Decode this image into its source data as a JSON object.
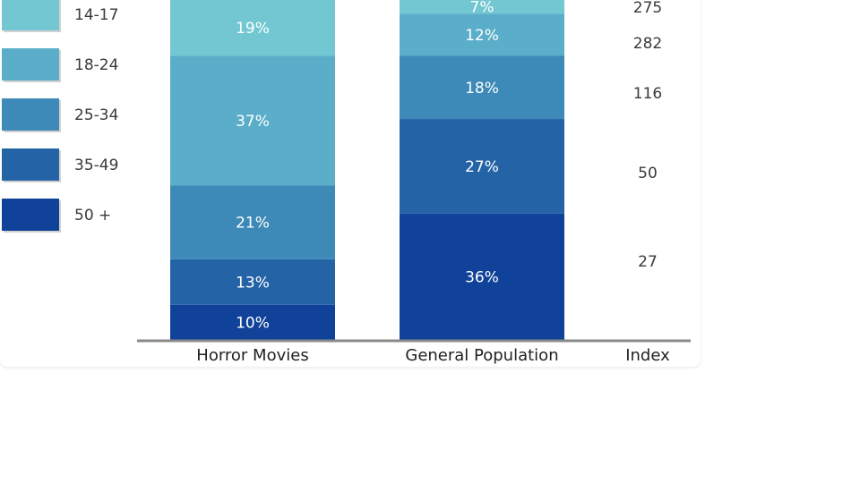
{
  "chart_data": {
    "type": "bar",
    "stacked": true,
    "normalized": true,
    "categories": [
      "Horror Movies",
      "General Population"
    ],
    "series": [
      {
        "name": "14-17",
        "color": "#72c7d2",
        "values": [
          19,
          7
        ],
        "labels": [
          "19%",
          "7%"
        ]
      },
      {
        "name": "18-24",
        "color": "#5aaec9",
        "values": [
          37,
          12
        ],
        "labels": [
          "37%",
          "12%"
        ]
      },
      {
        "name": "25-34",
        "color": "#3d89b7",
        "values": [
          21,
          18
        ],
        "labels": [
          "21%",
          "18%"
        ]
      },
      {
        "name": "35-49",
        "color": "#2563a7",
        "values": [
          13,
          27
        ],
        "labels": [
          "13%",
          "27%"
        ]
      },
      {
        "name": "50 +",
        "color": "#0f4298",
        "values": [
          10,
          36
        ],
        "labels": [
          "10%",
          "36%"
        ]
      }
    ],
    "index": {
      "label": "Index",
      "values": [
        "275",
        "282",
        "116",
        "50",
        "27"
      ]
    },
    "legend_position": "left",
    "ylim": [
      0,
      100
    ],
    "axis_color": "#8a8a8a"
  }
}
